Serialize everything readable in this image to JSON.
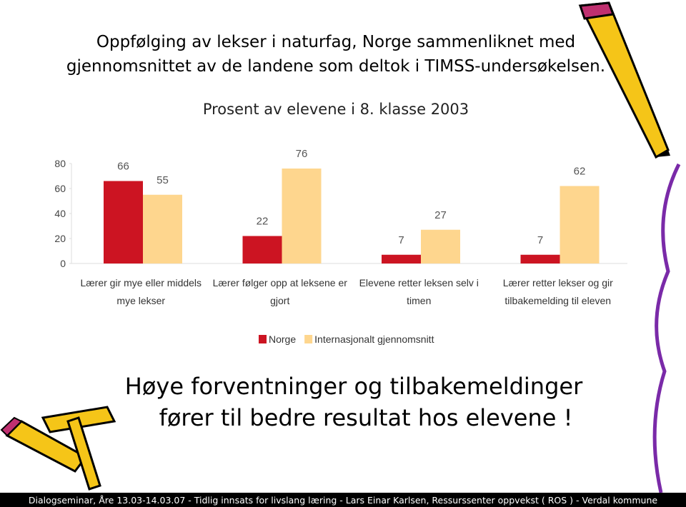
{
  "slide": {
    "title": [
      "Oppfølging av lekser i naturfag, Norge sammenliknet med",
      "gjennomsnittet av de landene som deltok i TIMSS-undersøkelsen."
    ],
    "subtitle": "Prosent av elevene i 8. klasse 2003",
    "message": [
      "Høye forventninger og tilbakemeldinger",
      "fører til bedre resultat  hos elevene !"
    ],
    "footer": "Dialogseminar, Åre 13.03-14.03.07 - Tidlig innsats for livslang læring - Lars Einar Karlsen, Ressurssenter oppvekst ( ROS ) - Verdal kommune"
  },
  "chart_data": {
    "type": "bar",
    "categories": [
      "Lærer gir mye eller middels mye lekser",
      "Lærer følger opp at leksene er gjort",
      "Elevene retter leksen selv i timen",
      "Lærer retter lekser og gir tilbakemelding til eleven"
    ],
    "series": [
      {
        "name": "Norge",
        "color": "#cc1422",
        "values": [
          66,
          22,
          7,
          7
        ]
      },
      {
        "name": "Internasjonalt gjennomsnitt",
        "color": "#fed68e",
        "values": [
          55,
          76,
          27,
          62
        ]
      }
    ],
    "ylim": [
      0,
      80
    ],
    "yticks": [
      0,
      20,
      40,
      60,
      80
    ],
    "grid": false,
    "legend": "bottom"
  }
}
